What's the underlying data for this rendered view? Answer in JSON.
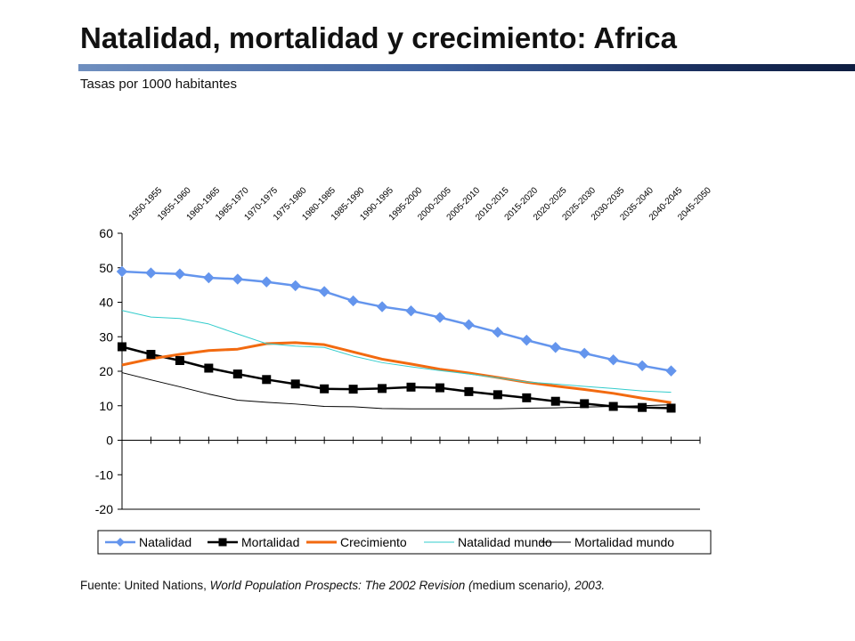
{
  "header": {
    "title": "Natalidad, mortalidad y crecimiento: Africa",
    "subtitle": "Tasas por 1000 habitantes"
  },
  "source": {
    "prefix": "Fuente: United Nations, ",
    "title": "World Population Prospects: The 2002 Revision (",
    "middle": "medium scenario",
    "end": "), 2003."
  },
  "colors": {
    "title_bar_start": "#6f8fbf",
    "title_bar_end": "#0e1d40"
  },
  "chart_data": {
    "type": "line",
    "title": "",
    "xlabel": "",
    "ylabel": "",
    "ylim": [
      -20,
      60
    ],
    "yticks": [
      60,
      50,
      40,
      30,
      20,
      10,
      0,
      -10,
      -20
    ],
    "grid": false,
    "legend_position": "bottom",
    "categories": [
      "1950-1955",
      "1955-1960",
      "1960-1965",
      "1965-1970",
      "1970-1975",
      "1975-1980",
      "1980-1985",
      "1985-1990",
      "1990-1995",
      "1995-2000",
      "2000-2005",
      "2005-2010",
      "2010-2015",
      "2015-2020",
      "2020-2025",
      "2025-2030",
      "2030-2035",
      "2035-2040",
      "2040-2045",
      "2045-2050"
    ],
    "series": [
      {
        "name": "Natalidad",
        "color": "#6495ed",
        "marker": "diamond",
        "width": 2.5,
        "values": [
          48.9,
          48.5,
          48.2,
          47.1,
          46.7,
          45.9,
          44.8,
          43.1,
          40.4,
          38.7,
          37.5,
          35.6,
          33.5,
          31.3,
          29.0,
          26.9,
          25.2,
          23.3,
          21.6,
          20.1
        ]
      },
      {
        "name": "Mortalidad",
        "color": "#000000",
        "marker": "square",
        "width": 2.5,
        "values": [
          27.1,
          24.9,
          23.1,
          20.9,
          19.2,
          17.6,
          16.3,
          14.9,
          14.8,
          15.0,
          15.4,
          15.2,
          14.1,
          13.2,
          12.3,
          11.3,
          10.6,
          9.8,
          9.5,
          9.3
        ]
      },
      {
        "name": "Crecimiento",
        "color": "#f26a10",
        "marker": "none",
        "width": 3,
        "values": [
          21.8,
          23.6,
          24.9,
          26.0,
          26.4,
          28.0,
          28.3,
          27.7,
          25.6,
          23.5,
          22.1,
          20.6,
          19.5,
          18.2,
          16.8,
          15.7,
          14.7,
          13.6,
          12.2,
          10.9
        ]
      },
      {
        "name": "Natalidad mundo",
        "color": "#33cccc",
        "marker": "none",
        "width": 1,
        "values": [
          37.6,
          35.7,
          35.3,
          33.7,
          30.8,
          28.0,
          27.3,
          26.9,
          24.4,
          22.5,
          21.3,
          20.2,
          19.2,
          18.1,
          16.9,
          16.3,
          15.6,
          15.0,
          14.3,
          13.9
        ]
      },
      {
        "name": "Mortalidad mundo",
        "color": "#000000",
        "marker": "none",
        "width": 1,
        "values": [
          19.6,
          17.5,
          15.5,
          13.4,
          11.6,
          11.0,
          10.5,
          9.8,
          9.7,
          9.2,
          9.1,
          9.1,
          9.1,
          9.1,
          9.3,
          9.4,
          9.6,
          9.8,
          10.0,
          10.3
        ]
      }
    ]
  }
}
